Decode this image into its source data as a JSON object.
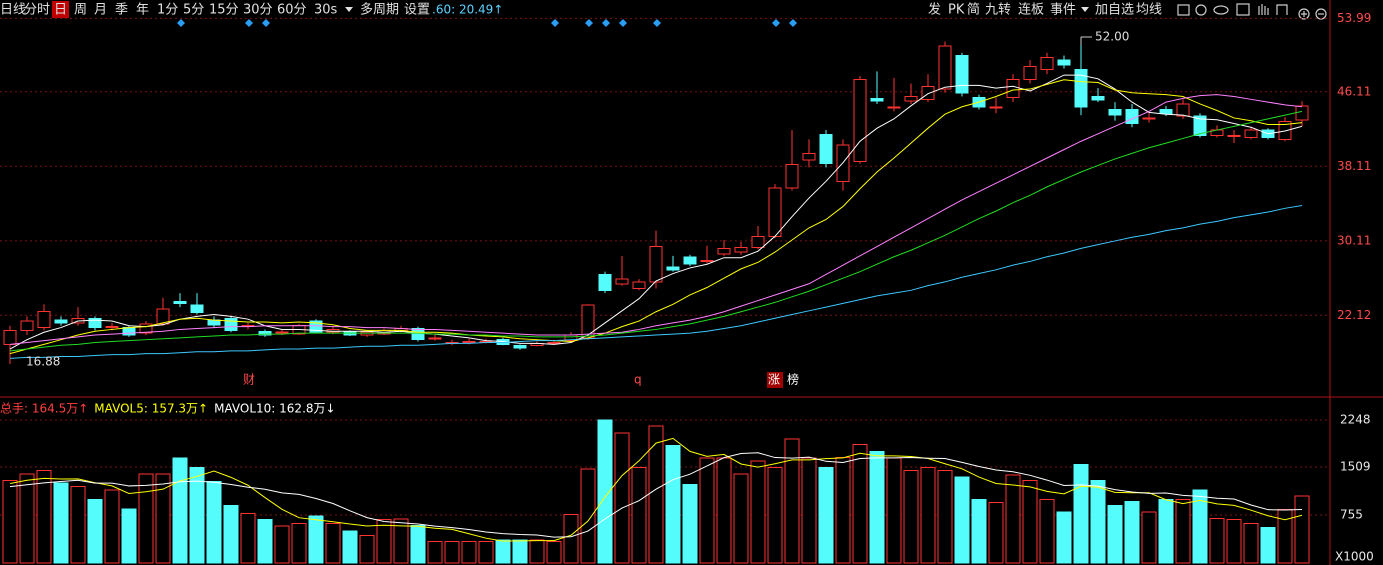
{
  "toolbar": {
    "left": [
      "日线",
      "分时",
      "日",
      "周",
      "月",
      "季",
      "年",
      "1分",
      "5分",
      "15分",
      "30分",
      "60分",
      "30s",
      "多周期",
      "设置"
    ],
    "quote": ".60: 20.49↑",
    "right": [
      "发",
      "PK",
      "简",
      "九转",
      "连板",
      "事件",
      "加自选",
      "均线"
    ]
  },
  "chart_data": [
    {
      "type": "candlestick",
      "up_color": "#ff3232",
      "down_color": "#54fcfc",
      "ylim": [
        14.1,
        55.1
      ],
      "yticks": [
        53.99,
        46.11,
        38.11,
        30.11,
        22.12
      ],
      "grid": true,
      "annotations": [
        "52.00",
        "16.88",
        "财",
        "q",
        "涨",
        "榜"
      ],
      "open": [
        19.0,
        20.5,
        20.8,
        21.6,
        21.3,
        21.8,
        20.8,
        20.8,
        20.2,
        21.2,
        23.6,
        23.2,
        21.6,
        21.8,
        20.9,
        20.4,
        20.3,
        20.1,
        21.5,
        20.3,
        20.3,
        20.0,
        20.1,
        20.5,
        20.7,
        19.7,
        19.2,
        19.3,
        19.3,
        19.5,
        18.9,
        18.9,
        19.2,
        19.4,
        19.7,
        26.5,
        25.5,
        25.0,
        25.7,
        27.3,
        28.4,
        28.0,
        28.7,
        28.9,
        29.4,
        30.6,
        35.8,
        38.8,
        41.5,
        36.5,
        38.6,
        45.4,
        44.5,
        45.1,
        45.3,
        46.4,
        50.0,
        45.5,
        44.5,
        45.5,
        47.4,
        48.5,
        49.5,
        48.5,
        45.6,
        44.2,
        44.2,
        43.3,
        44.2,
        43.5,
        43.5,
        41.4,
        41.4,
        41.2,
        42.0,
        41.0,
        43.1
      ],
      "close": [
        20.5,
        21.5,
        22.5,
        21.3,
        21.8,
        20.8,
        20.9,
        20.0,
        21.2,
        22.8,
        23.4,
        22.4,
        21.1,
        20.5,
        21.0,
        20.0,
        20.3,
        21.0,
        20.3,
        20.6,
        20.0,
        20.3,
        20.5,
        20.7,
        19.5,
        19.7,
        19.2,
        19.3,
        19.3,
        19.0,
        18.6,
        19.1,
        19.2,
        20.0,
        23.2,
        24.8,
        26.0,
        25.7,
        29.5,
        27.0,
        27.6,
        28.0,
        29.3,
        29.4,
        30.6,
        35.8,
        38.3,
        39.5,
        38.4,
        40.4,
        47.4,
        45.1,
        44.5,
        45.6,
        46.7,
        51.0,
        46.0,
        44.5,
        44.5,
        47.4,
        48.8,
        49.8,
        49.0,
        44.5,
        45.2,
        43.6,
        42.7,
        43.3,
        43.8,
        44.8,
        41.4,
        42.0,
        41.4,
        42.0,
        41.2,
        42.9,
        44.6
      ],
      "high": [
        21.0,
        22.0,
        23.3,
        22.0,
        23.0,
        22.0,
        21.3,
        21.0,
        21.5,
        24.0,
        24.5,
        24.5,
        22.0,
        22.0,
        21.3,
        20.6,
        20.6,
        21.2,
        21.7,
        20.9,
        20.5,
        20.5,
        20.7,
        21.0,
        20.9,
        20.0,
        19.5,
        19.6,
        19.6,
        19.7,
        19.0,
        19.3,
        19.5,
        20.3,
        23.3,
        26.8,
        28.5,
        26.0,
        31.2,
        28.5,
        28.6,
        29.6,
        30.2,
        30.0,
        31.7,
        36.2,
        42.0,
        41.0,
        42.0,
        41.0,
        47.8,
        48.3,
        47.6,
        47.0,
        48.0,
        51.5,
        50.3,
        45.8,
        45.5,
        48.0,
        49.5,
        50.3,
        50.0,
        52.0,
        46.5,
        45.0,
        44.8,
        44.0,
        44.6,
        45.3,
        43.8,
        42.5,
        42.0,
        42.3,
        42.2,
        43.4,
        45.1
      ],
      "low": [
        16.88,
        20.0,
        20.5,
        21.0,
        21.0,
        20.5,
        20.5,
        19.8,
        20.0,
        21.0,
        23.0,
        22.2,
        20.8,
        20.3,
        20.6,
        19.8,
        20.0,
        20.0,
        20.2,
        20.1,
        19.9,
        19.8,
        20.0,
        20.3,
        19.3,
        19.4,
        18.9,
        19.0,
        19.1,
        18.9,
        18.4,
        18.8,
        19.0,
        19.2,
        19.5,
        24.5,
        25.3,
        24.8,
        25.0,
        26.8,
        27.4,
        27.7,
        28.5,
        28.6,
        29.2,
        30.4,
        35.5,
        38.0,
        38.0,
        35.5,
        38.4,
        44.8,
        44.0,
        44.8,
        45.0,
        46.0,
        45.6,
        44.2,
        43.8,
        45.0,
        47.0,
        48.0,
        48.6,
        43.6,
        45.0,
        43.0,
        42.3,
        42.8,
        43.5,
        43.2,
        41.2,
        41.2,
        40.6,
        41.0,
        41.0,
        40.8,
        42.4
      ],
      "series": [
        {
          "color": "#ffffff",
          "values": [
            18.5,
            19.5,
            20.3,
            20.8,
            21.5,
            21.6,
            21.5,
            21.0,
            20.9,
            21.1,
            21.7,
            22.0,
            22.2,
            22.0,
            21.7,
            21.0,
            20.6,
            20.6,
            20.5,
            20.4,
            20.4,
            20.4,
            20.3,
            20.4,
            20.2,
            20.1,
            19.9,
            19.7,
            19.4,
            19.3,
            19.1,
            19.1,
            19.0,
            19.2,
            20.0,
            21.3,
            22.6,
            23.9,
            25.8,
            26.6,
            27.2,
            27.6,
            28.3,
            28.3,
            29.0,
            30.6,
            32.7,
            34.7,
            36.5,
            38.5,
            40.8,
            42.2,
            43.2,
            44.6,
            45.9,
            46.6,
            46.8,
            46.8,
            46.5,
            46.7,
            46.2,
            47.0,
            47.9,
            47.9,
            47.5,
            46.4,
            45.0,
            43.9,
            43.7,
            43.6,
            43.2,
            43.1,
            42.7,
            42.3,
            41.6,
            41.9,
            42.4
          ]
        },
        {
          "color": "#ffff00",
          "values": [
            18.0,
            18.5,
            19.0,
            19.5,
            20.0,
            20.4,
            20.6,
            20.8,
            20.9,
            21.3,
            21.7,
            21.8,
            21.6,
            21.5,
            21.4,
            21.4,
            21.3,
            21.4,
            21.3,
            21.1,
            20.7,
            20.5,
            20.5,
            20.5,
            20.3,
            20.3,
            20.2,
            20.0,
            19.9,
            19.8,
            19.6,
            19.5,
            19.4,
            19.3,
            19.7,
            20.2,
            20.9,
            21.5,
            22.5,
            23.3,
            24.3,
            25.1,
            26.1,
            27.1,
            27.8,
            28.9,
            30.2,
            31.5,
            32.4,
            33.8,
            35.7,
            37.5,
            39.0,
            40.6,
            42.2,
            43.7,
            44.5,
            45.0,
            45.6,
            46.3,
            46.4,
            46.9,
            47.4,
            47.2,
            47.1,
            46.3,
            46.0,
            45.9,
            45.8,
            45.6,
            44.8,
            44.1,
            43.3,
            43.0,
            42.6,
            42.6,
            42.8
          ]
        },
        {
          "color": "#ff80ff",
          "values": [
            19.0,
            19.2,
            19.4,
            19.6,
            19.8,
            20.0,
            20.1,
            20.2,
            20.3,
            20.4,
            20.6,
            20.7,
            20.8,
            20.9,
            20.9,
            21.0,
            21.0,
            21.0,
            21.0,
            20.9,
            20.9,
            20.8,
            20.8,
            20.7,
            20.6,
            20.6,
            20.5,
            20.4,
            20.3,
            20.2,
            20.1,
            20.0,
            20.0,
            20.0,
            20.1,
            20.2,
            20.3,
            20.6,
            21.0,
            21.3,
            21.6,
            22.0,
            22.5,
            23.1,
            23.7,
            24.3,
            24.9,
            25.5,
            26.5,
            27.5,
            28.5,
            29.5,
            30.5,
            31.5,
            32.5,
            33.5,
            34.5,
            35.4,
            36.3,
            37.2,
            38.1,
            39.0,
            39.9,
            40.8,
            41.6,
            42.4,
            43.2,
            44.0,
            45.0,
            45.4,
            45.7,
            45.8,
            45.6,
            45.3,
            45.0,
            44.7,
            44.5
          ]
        },
        {
          "color": "#22dd22",
          "values": [
            18.3,
            18.5,
            18.7,
            18.9,
            19.0,
            19.2,
            19.3,
            19.4,
            19.5,
            19.6,
            19.7,
            19.8,
            19.9,
            20.0,
            20.0,
            20.1,
            20.1,
            20.2,
            20.2,
            20.2,
            20.2,
            20.2,
            20.2,
            20.2,
            20.2,
            20.1,
            20.1,
            20.0,
            20.0,
            19.9,
            19.9,
            19.8,
            19.8,
            19.8,
            19.9,
            20.0,
            20.2,
            20.4,
            20.6,
            20.9,
            21.2,
            21.6,
            22.0,
            22.5,
            23.0,
            23.5,
            24.1,
            24.7,
            25.4,
            26.1,
            26.8,
            27.6,
            28.4,
            29.1,
            29.9,
            30.7,
            31.6,
            32.5,
            33.3,
            34.2,
            35.0,
            35.9,
            36.7,
            37.5,
            38.2,
            38.9,
            39.5,
            40.1,
            40.6,
            41.1,
            41.6,
            42.0,
            42.4,
            42.8,
            43.2,
            43.6,
            44.0
          ]
        },
        {
          "color": "#3cc8ff",
          "values": [
            17.5,
            17.6,
            17.6,
            17.7,
            17.7,
            17.8,
            17.9,
            17.9,
            18.0,
            18.0,
            18.1,
            18.2,
            18.2,
            18.3,
            18.3,
            18.4,
            18.5,
            18.5,
            18.6,
            18.6,
            18.7,
            18.8,
            18.8,
            18.9,
            18.9,
            19.0,
            19.1,
            19.1,
            19.2,
            19.2,
            19.3,
            19.4,
            19.4,
            19.5,
            19.6,
            19.7,
            19.8,
            19.9,
            20.0,
            20.1,
            20.2,
            20.4,
            20.7,
            21.0,
            21.4,
            21.8,
            22.2,
            22.6,
            23.0,
            23.4,
            23.8,
            24.2,
            24.5,
            24.8,
            25.3,
            25.7,
            26.2,
            26.6,
            27.0,
            27.5,
            27.9,
            28.4,
            28.8,
            29.3,
            29.7,
            30.1,
            30.5,
            30.8,
            31.2,
            31.5,
            31.9,
            32.2,
            32.6,
            32.9,
            33.2,
            33.6,
            33.9
          ]
        }
      ]
    },
    {
      "type": "bar",
      "ylim": [
        0,
        2530
      ],
      "yticks": [
        755,
        1509,
        2248
      ],
      "grid": true,
      "unit_label": "X1000",
      "legend": [
        {
          "text": "总手: 164.5万↑",
          "color": "#ff4040"
        },
        {
          "text": "MAVOL5: 157.3万↑",
          "color": "#ffff00"
        },
        {
          "text": "MAVOL10: 162.8万↓",
          "color": "#ffffff"
        }
      ],
      "values": [
        1300,
        1400,
        1450,
        1260,
        1200,
        1000,
        1150,
        850,
        1400,
        1400,
        1650,
        1500,
        1280,
        900,
        780,
        680,
        580,
        620,
        740,
        620,
        500,
        430,
        680,
        690,
        590,
        340,
        340,
        340,
        340,
        360,
        360,
        360,
        340,
        760,
        1480,
        2250,
        2040,
        1500,
        2150,
        1850,
        1230,
        1650,
        1650,
        1400,
        1600,
        1500,
        1950,
        1650,
        1500,
        1660,
        1860,
        1750,
        1650,
        1450,
        1500,
        1450,
        1350,
        1000,
        950,
        1380,
        1300,
        1000,
        800,
        1550,
        1300,
        900,
        970,
        800,
        1000,
        1000,
        1150,
        700,
        680,
        620,
        560,
        840,
        1050
      ],
      "series": [
        {
          "color": "#ffff00",
          "values": [
            1250,
            1300,
            1330,
            1320,
            1322,
            1262,
            1212,
            1092,
            1120,
            1160,
            1290,
            1360,
            1446,
            1346,
            1222,
            1028,
            844,
            712,
            680,
            648,
            612,
            582,
            594,
            584,
            578,
            546,
            528,
            460,
            390,
            344,
            348,
            352,
            352,
            436,
            660,
            1038,
            1374,
            1606,
            1884,
            1958,
            1754,
            1676,
            1706,
            1556,
            1506,
            1560,
            1620,
            1620,
            1640,
            1652,
            1724,
            1684,
            1684,
            1674,
            1642,
            1560,
            1480,
            1350,
            1250,
            1226,
            1196,
            1126,
            1086,
            1206,
            1190,
            1110,
            1104,
            1104,
            994,
            934,
            984,
            930,
            906,
            830,
            742,
            680,
            750
          ]
        },
        {
          "color": "#ffffff",
          "values": [
            1200,
            1230,
            1260,
            1280,
            1300,
            1256,
            1256,
            1211,
            1220,
            1241,
            1276,
            1286,
            1269,
            1233,
            1191,
            1159,
            1102,
            1079,
            1013,
            935,
            820,
            713,
            653,
            632,
            613,
            579,
            555,
            527,
            487,
            461,
            447,
            440,
            406,
            413,
            502,
            693,
            863,
            979,
            1160,
            1309,
            1396,
            1525,
            1656,
            1720,
            1732,
            1657,
            1648,
            1663,
            1598,
            1579,
            1642,
            1652,
            1652,
            1657,
            1647,
            1642,
            1582,
            1517,
            1462,
            1434,
            1378,
            1303,
            1218,
            1228,
            1208,
            1153,
            1115,
            1095,
            1100,
            1062,
            1047,
            1017,
            1005,
            912,
            838,
            832,
            840
          ]
        }
      ]
    }
  ]
}
